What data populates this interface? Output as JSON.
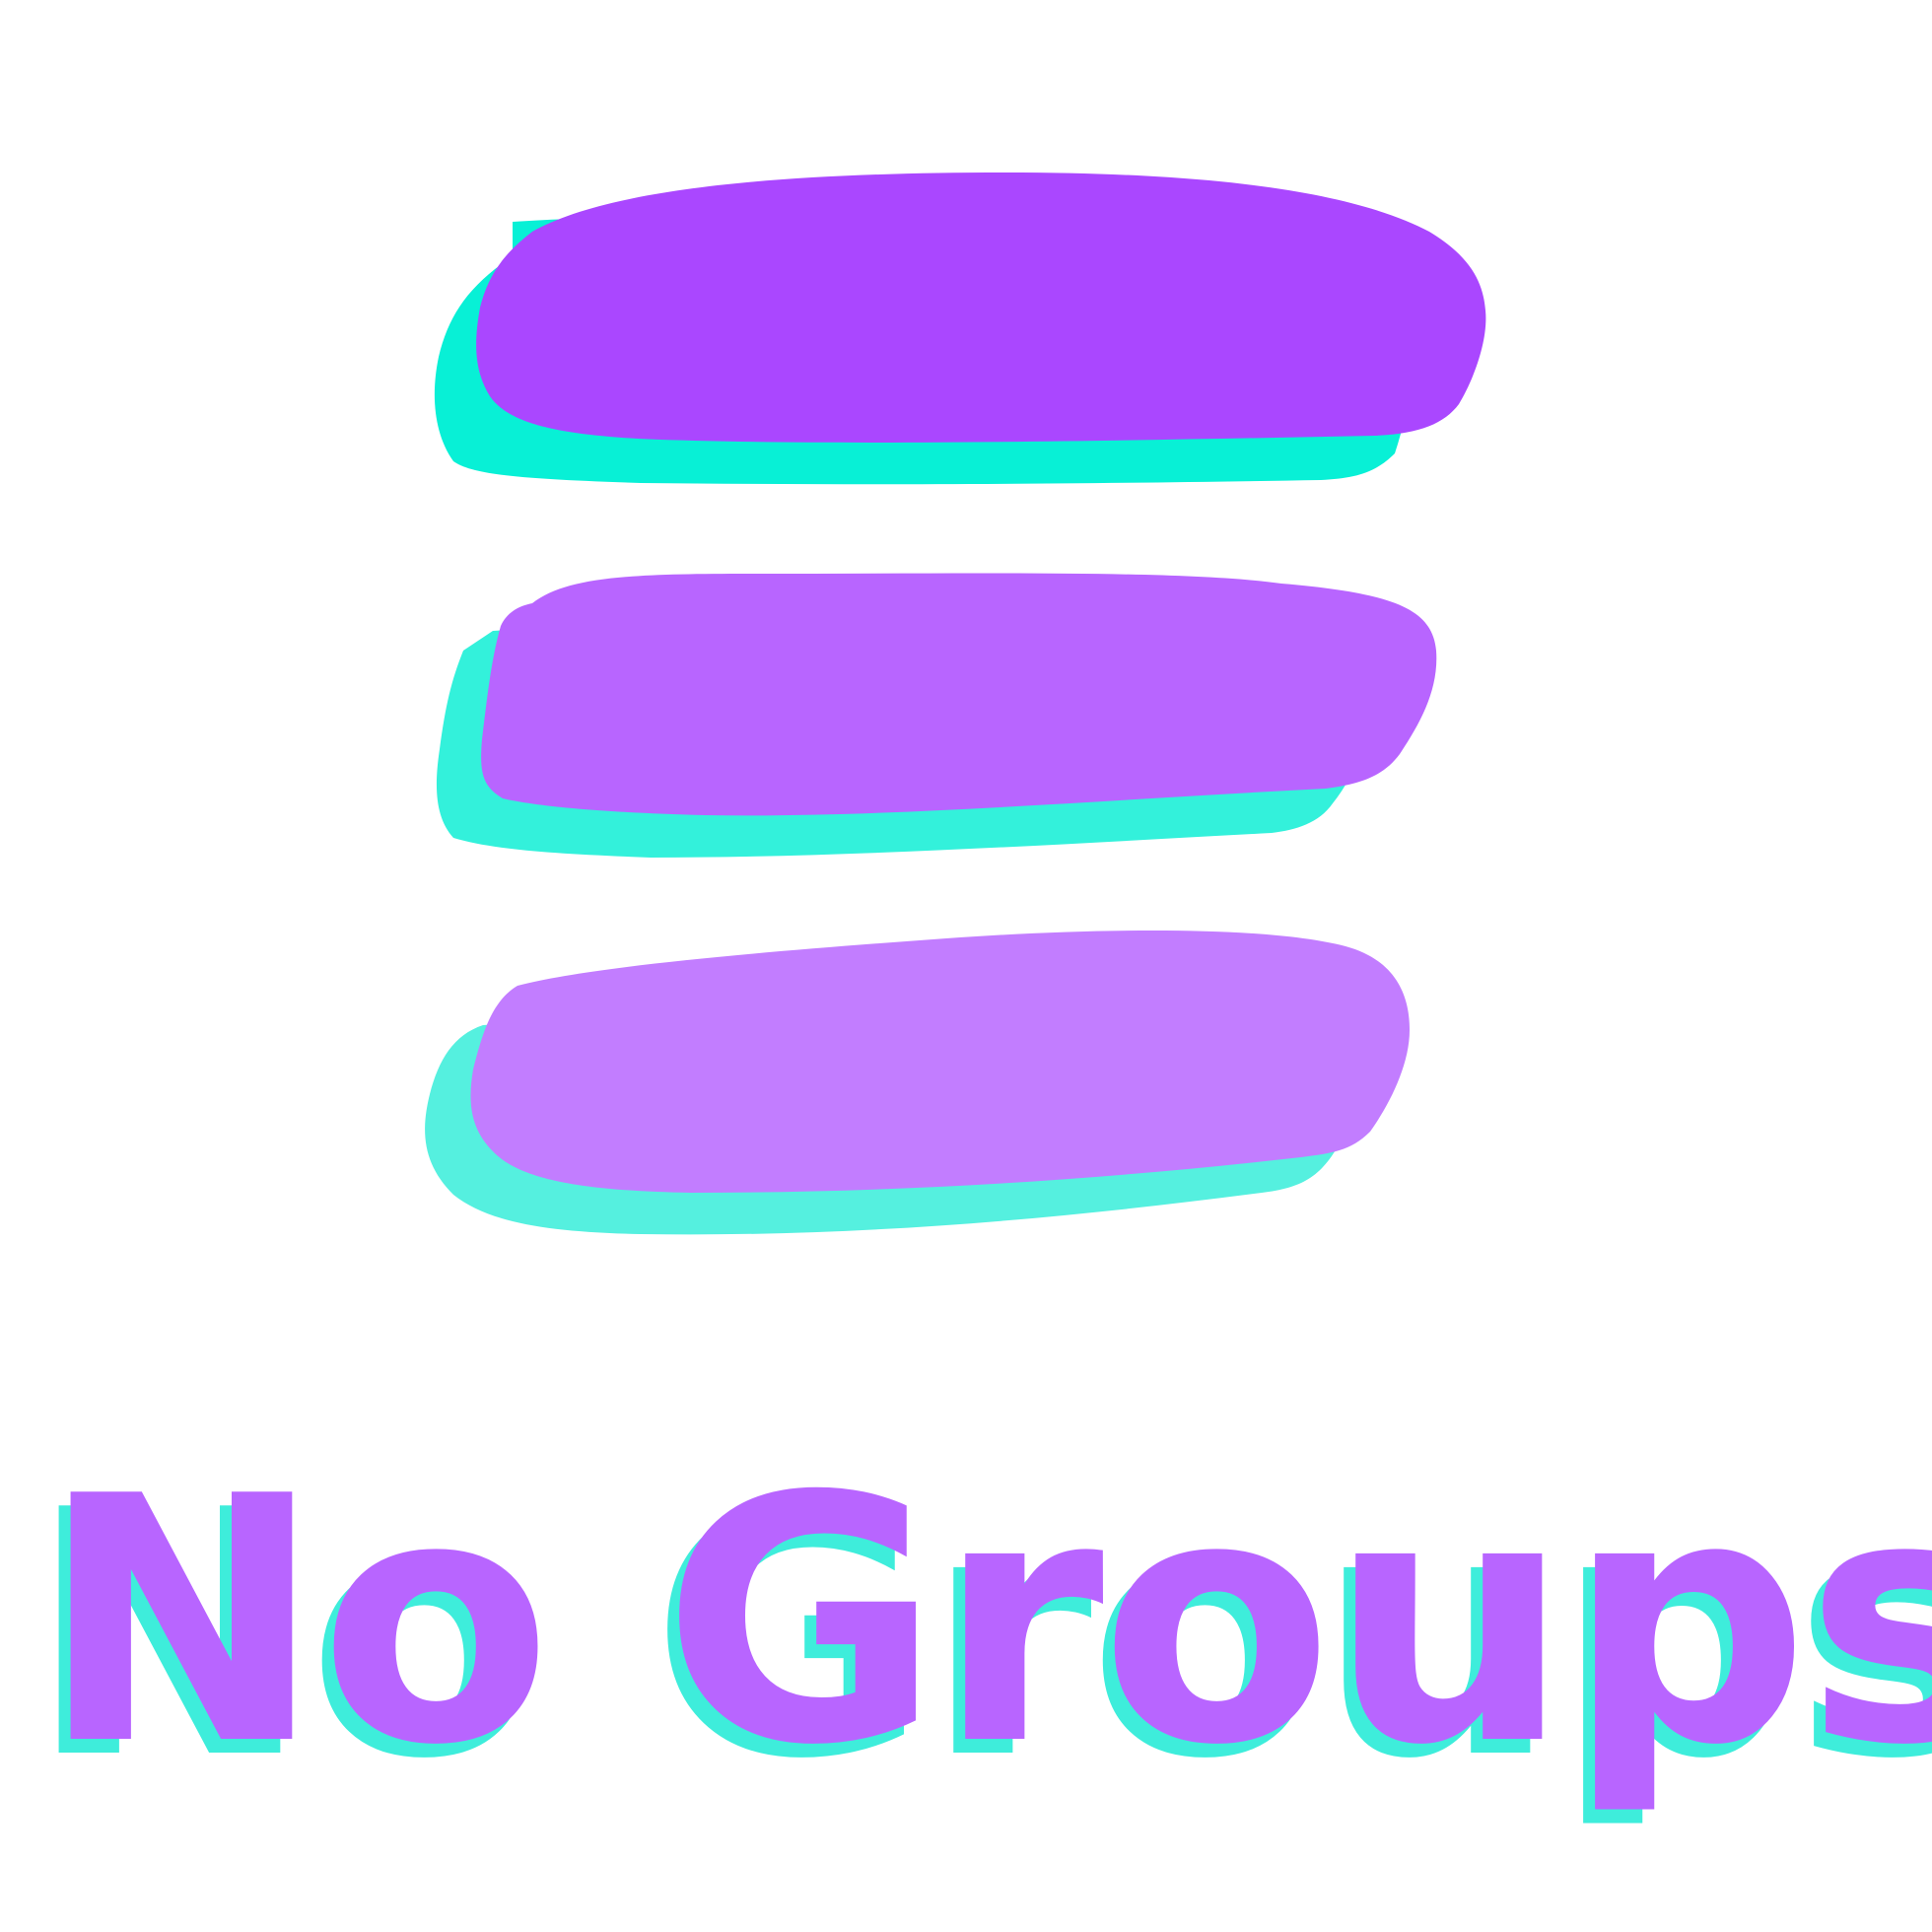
{
  "title": "No Groups",
  "colors": {
    "shadow_bar_1": "#08F0D6",
    "shadow_bar_2": "#33F1DB",
    "shadow_bar_3": "#55F0DF",
    "bar_1": "#AA47FF",
    "bar_2": "#B865FF",
    "bar_3": "#C27DFF",
    "title_shadow": "#3EEDDB",
    "title_main": "#B865FF",
    "background": "#FFFFFF"
  },
  "icons": [
    "stacked-bars-icon"
  ]
}
